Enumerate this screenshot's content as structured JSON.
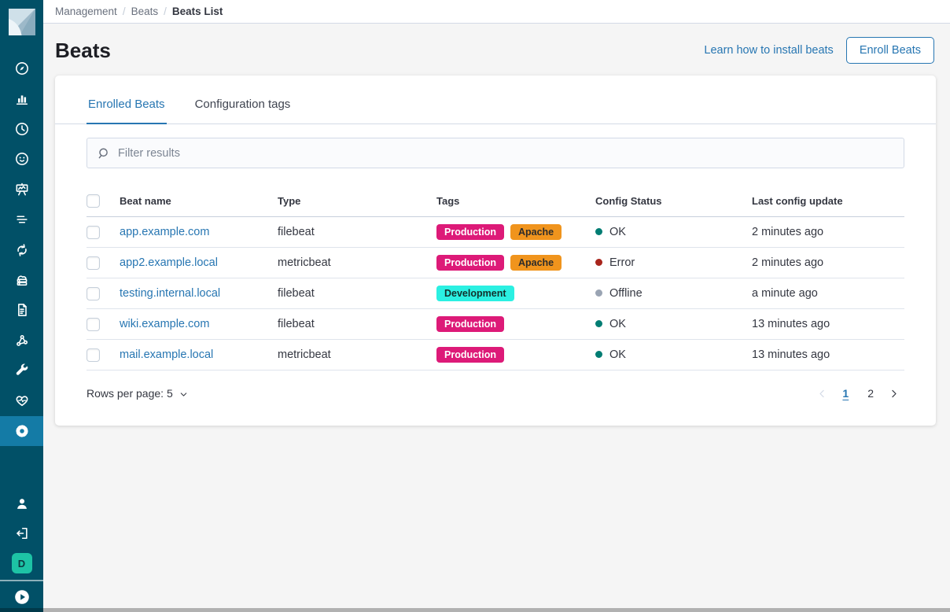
{
  "colors": {
    "primary": "#2776b2",
    "sidebar_bg": "#015067",
    "sidebar_active_bg": "#147ba6",
    "space_badge_bg": "#1dc3a5",
    "page_bg": "#f5f5f5",
    "border": "#d3dae6",
    "text": "#343741",
    "muted_text": "#69707d"
  },
  "sidebar": {
    "logo_icon": "kibana-logo",
    "items": [
      {
        "icon": "compass-icon",
        "active": false
      },
      {
        "icon": "bar-chart-icon",
        "active": false
      },
      {
        "icon": "clock-icon",
        "active": false
      },
      {
        "icon": "face-icon",
        "active": false
      },
      {
        "icon": "presentation-chart-icon",
        "active": false
      },
      {
        "icon": "text-lines-icon",
        "active": false
      },
      {
        "icon": "sync-arrows-icon",
        "active": false
      },
      {
        "icon": "cloud-server-icon",
        "active": false
      },
      {
        "icon": "document-icon",
        "active": false
      },
      {
        "icon": "graph-nodes-icon",
        "active": false
      },
      {
        "icon": "wrench-icon",
        "active": false
      },
      {
        "icon": "heartbeat-icon",
        "active": false
      },
      {
        "icon": "gear-icon",
        "active": true
      }
    ],
    "bottom_items": [
      "user-icon",
      "logout-icon"
    ],
    "space_badge_label": "D",
    "collapse_icon": "play-circle-icon"
  },
  "breadcrumbs": {
    "separator": "/",
    "items": [
      {
        "label": "Management",
        "current": false
      },
      {
        "label": "Beats",
        "current": false
      },
      {
        "label": "Beats List",
        "current": true
      }
    ]
  },
  "header": {
    "title": "Beats",
    "learn_link_label": "Learn how to install beats",
    "enroll_button_label": "Enroll Beats"
  },
  "tabs": [
    {
      "label": "Enrolled Beats",
      "active": true
    },
    {
      "label": "Configuration tags",
      "active": false
    }
  ],
  "filter": {
    "placeholder": "Filter results",
    "icon": "search-icon"
  },
  "table": {
    "columns": [
      "Beat name",
      "Type",
      "Tags",
      "Config Status",
      "Last config update"
    ],
    "rows": [
      {
        "name": "app.example.com",
        "type": "filebeat",
        "tags": [
          "Production",
          "Apache"
        ],
        "status": "OK",
        "last_update": "2 minutes ago"
      },
      {
        "name": "app2.example.local",
        "type": "metricbeat",
        "tags": [
          "Production",
          "Apache"
        ],
        "status": "Error",
        "last_update": "2 minutes ago"
      },
      {
        "name": "testing.internal.local",
        "type": "filebeat",
        "tags": [
          "Development"
        ],
        "status": "Offline",
        "last_update": "a minute ago"
      },
      {
        "name": "wiki.example.com",
        "type": "filebeat",
        "tags": [
          "Production"
        ],
        "status": "OK",
        "last_update": "13 minutes ago"
      },
      {
        "name": "mail.example.local",
        "type": "metricbeat",
        "tags": [
          "Production"
        ],
        "status": "OK",
        "last_update": "13 minutes ago"
      }
    ]
  },
  "tag_styles": {
    "Production": {
      "bg": "#dd1a78",
      "text": "#ffffff"
    },
    "Apache": {
      "bg": "#f0941d",
      "text": "#2b2b2b"
    },
    "Development": {
      "bg": "#2bf0e2",
      "text": "#13302c"
    }
  },
  "status_styles": {
    "OK": "#017d73",
    "Error": "#a8251c",
    "Offline": "#9aa4b3"
  },
  "footer": {
    "rows_per_page_label": "Rows per page: 5",
    "rows_per_page_icon": "chevron-down-icon",
    "pagination": {
      "prev_icon": "chevron-left-icon",
      "next_icon": "chevron-right-icon",
      "pages": [
        "1",
        "2"
      ],
      "active": "1",
      "prev_enabled": false,
      "next_enabled": true
    }
  }
}
